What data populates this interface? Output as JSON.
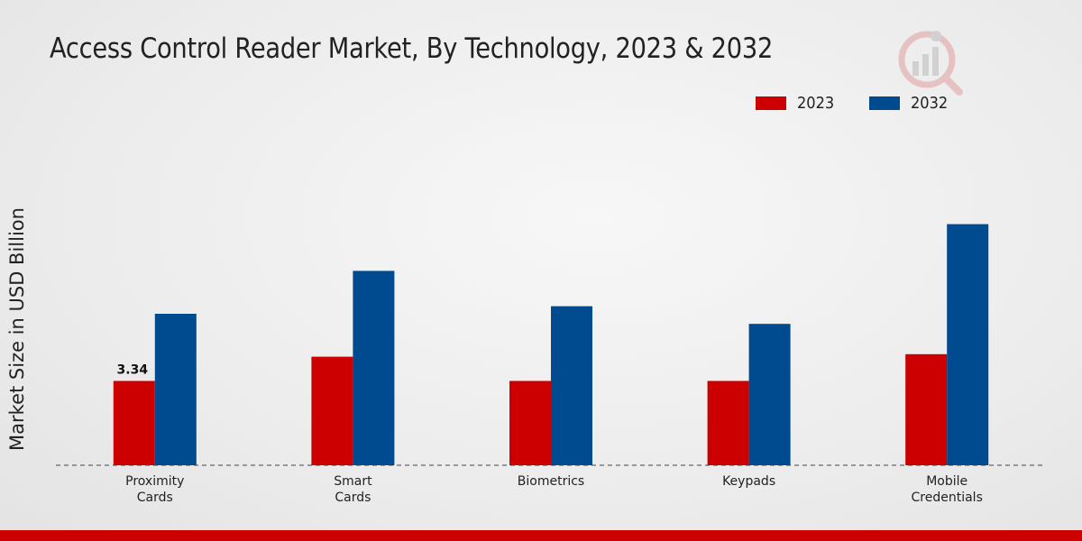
{
  "chart_data": {
    "type": "bar",
    "title": "Access Control Reader Market, By Technology, 2023 & 2032",
    "xlabel": "",
    "ylabel": "Market Size in USD Billion",
    "categories": [
      "Proximity\nCards",
      "Smart\nCards",
      "Biometrics",
      "Keypads",
      "Mobile\nCredentials"
    ],
    "series": [
      {
        "name": "2023",
        "color": "#cc0000",
        "values": [
          3.34,
          4.3,
          3.34,
          3.34,
          4.4
        ]
      },
      {
        "name": "2032",
        "color": "#004a8f",
        "values": [
          6.0,
          7.7,
          6.3,
          5.6,
          9.55
        ]
      }
    ],
    "data_labels": [
      {
        "series": 0,
        "index": 0,
        "text": "3.34"
      }
    ],
    "ylim": [
      0,
      13.5
    ],
    "grid": false,
    "legend_position": "top-right"
  },
  "legend": {
    "items": [
      {
        "label": "2023",
        "color": "#cc0000"
      },
      {
        "label": "2032",
        "color": "#004a8f"
      }
    ]
  },
  "footer": {
    "color": "#cc0000"
  }
}
